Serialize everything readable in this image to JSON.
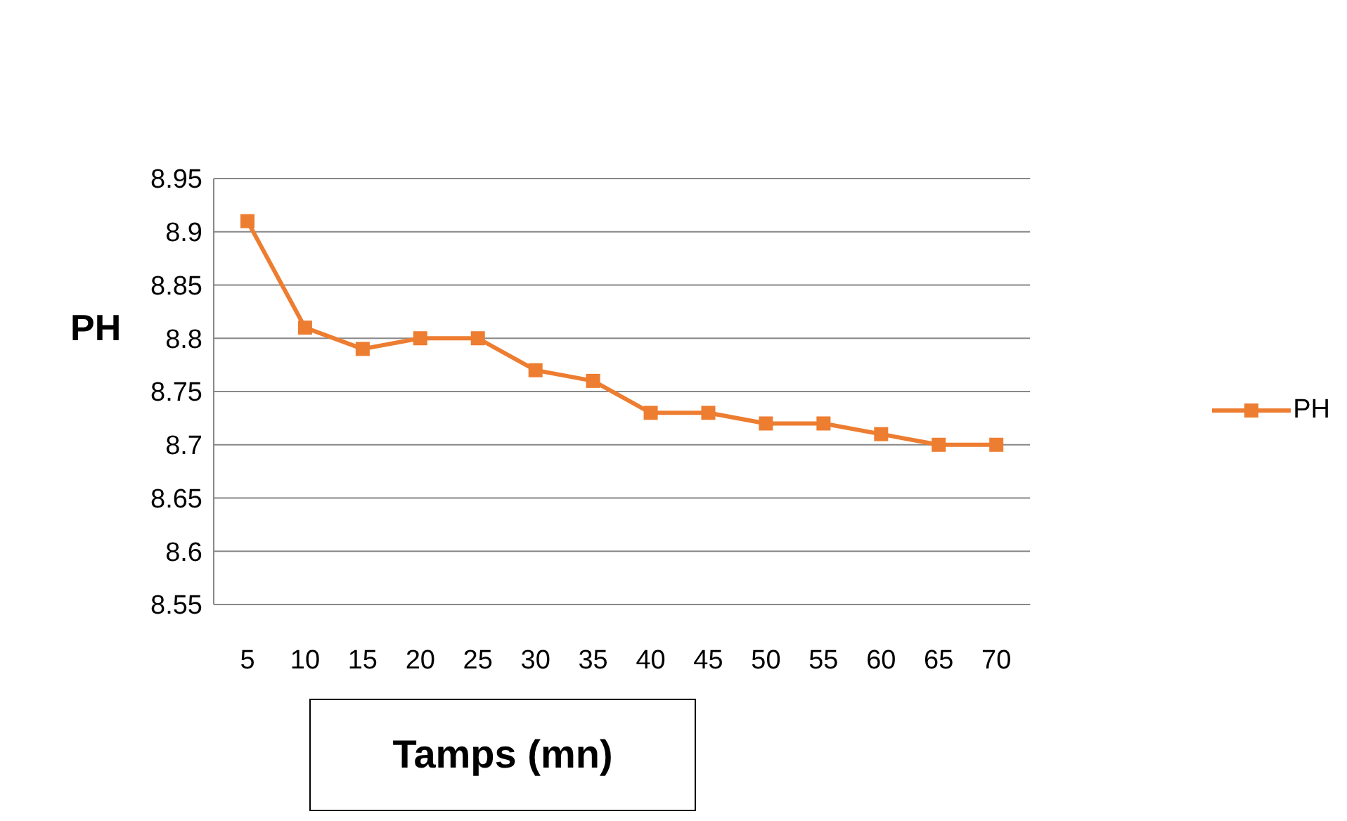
{
  "chart_data": {
    "type": "line",
    "xlabel": "Tamps (mn)",
    "ylabel": "PH",
    "categories": [
      "5",
      "10",
      "15",
      "20",
      "25",
      "30",
      "35",
      "40",
      "45",
      "50",
      "55",
      "60",
      "65",
      "70"
    ],
    "series": [
      {
        "name": "PH",
        "color": "#ed7d31",
        "values": [
          8.91,
          8.81,
          8.79,
          8.8,
          8.8,
          8.77,
          8.76,
          8.73,
          8.73,
          8.72,
          8.72,
          8.71,
          8.7,
          8.7
        ]
      }
    ],
    "ylim": [
      8.55,
      8.95
    ],
    "yticks": [
      8.55,
      8.6,
      8.65,
      8.7,
      8.75,
      8.8,
      8.85,
      8.9,
      8.95
    ],
    "grid": "y",
    "legend": "right",
    "marker": "square",
    "line_style": "solid"
  }
}
